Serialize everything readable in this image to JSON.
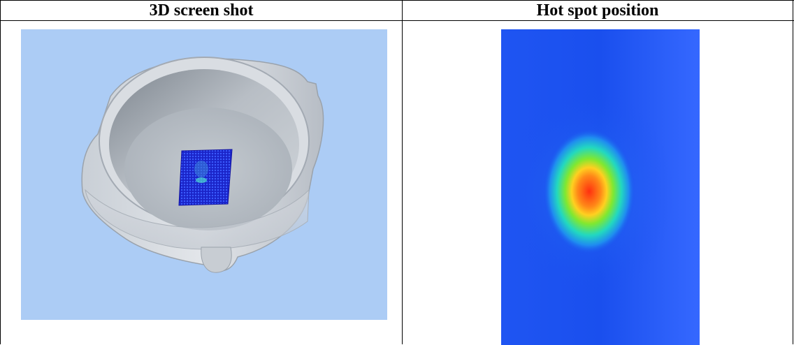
{
  "table": {
    "headers": {
      "left": "3D screen shot",
      "right": "Hot spot position"
    }
  },
  "figures": {
    "left": {
      "kind": "3D rendering of a molded bowl with a probe grid",
      "background_color": "#acccf5",
      "grid_color": "#1e2fd8"
    },
    "right": {
      "kind": "heat map",
      "colors": {
        "background": "#3366ff",
        "cool": "#1a66f0",
        "mid": "#22d8c0",
        "warm": "#80e830",
        "hot": "#ffd020",
        "peak": "#ff3010"
      }
    }
  }
}
